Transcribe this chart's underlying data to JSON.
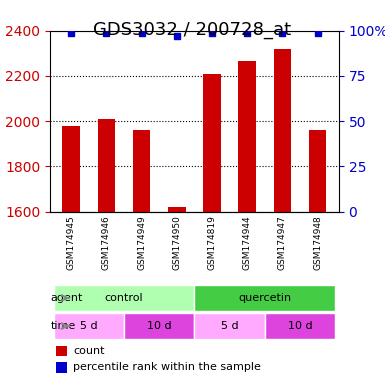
{
  "title": "GDS3032 / 200728_at",
  "samples": [
    "GSM174945",
    "GSM174946",
    "GSM174949",
    "GSM174950",
    "GSM174819",
    "GSM174944",
    "GSM174947",
    "GSM174948"
  ],
  "counts": [
    1980,
    2010,
    1960,
    1618,
    2210,
    2265,
    2320,
    1960
  ],
  "percentile_ranks": [
    99,
    99,
    99,
    97,
    99,
    99,
    99,
    99
  ],
  "ylim": [
    1600,
    2400
  ],
  "yticks": [
    1600,
    1800,
    2000,
    2200,
    2400
  ],
  "y2ticks": [
    0,
    25,
    50,
    75,
    100
  ],
  "y2labels": [
    "0",
    "25",
    "50",
    "75",
    "100%"
  ],
  "bar_color": "#cc0000",
  "dot_color": "#0000cc",
  "agent_groups": [
    {
      "label": "control",
      "start": 0,
      "end": 4,
      "color": "#b0ffb0"
    },
    {
      "label": "quercetin",
      "start": 4,
      "end": 8,
      "color": "#44cc44"
    }
  ],
  "time_groups": [
    {
      "label": "5 d",
      "start": 0,
      "end": 2,
      "color": "#ffaaff"
    },
    {
      "label": "10 d",
      "start": 2,
      "end": 4,
      "color": "#dd44dd"
    },
    {
      "label": "5 d",
      "start": 4,
      "end": 6,
      "color": "#ffaaff"
    },
    {
      "label": "10 d",
      "start": 6,
      "end": 8,
      "color": "#dd44dd"
    }
  ],
  "xlabel_color": "#888888",
  "ylabel_color": "#cc0000",
  "y2label_color": "#0000cc",
  "grid_color": "#000000",
  "background_color": "#ffffff",
  "title_fontsize": 13,
  "tick_fontsize": 10,
  "label_fontsize": 9,
  "bar_width": 0.5
}
